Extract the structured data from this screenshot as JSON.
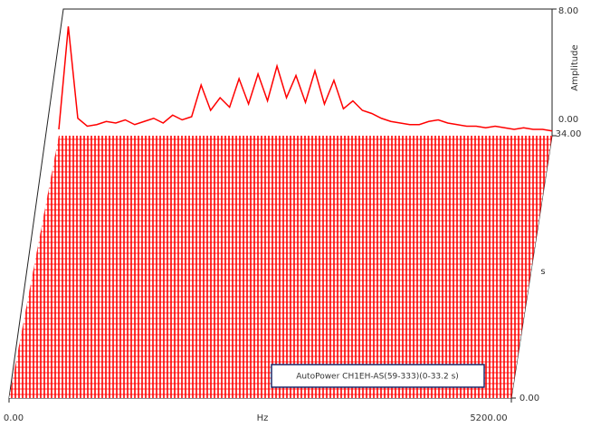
{
  "chart_data": {
    "type": "waterfall",
    "x_label": "Hz",
    "y_label": "Amplitude",
    "z_label": "s",
    "xlim": [
      0,
      5200
    ],
    "xticks": [
      {
        "value": 0,
        "label": "0.00"
      },
      {
        "value": 5200,
        "label": "5200.00"
      }
    ],
    "ylim": [
      0,
      8
    ],
    "yticks": [
      {
        "value": 0,
        "label": "0.00"
      },
      {
        "value": 8,
        "label": "8.00"
      }
    ],
    "zlim": [
      0,
      34
    ],
    "zticks": [
      {
        "value": 0,
        "label": "0.00"
      },
      {
        "value": 34,
        "label": "34.00"
      }
    ],
    "series": [
      {
        "name": "AutoPower CH1EH-AS(59-333)(0-33.2 s)",
        "color": "#ff0000",
        "x": [
          0,
          100,
          200,
          300,
          400,
          500,
          600,
          700,
          800,
          900,
          1000,
          1100,
          1200,
          1300,
          1400,
          1500,
          1600,
          1700,
          1800,
          1900,
          2000,
          2100,
          2200,
          2300,
          2400,
          2500,
          2600,
          2700,
          2800,
          2900,
          3000,
          3100,
          3200,
          3300,
          3400,
          3500,
          3600,
          3700,
          3800,
          3900,
          4000,
          4100,
          4200,
          4300,
          4400,
          4500,
          4600,
          4700,
          4800,
          4900,
          5000,
          5100,
          5200
        ],
        "values": [
          0.4,
          6.9,
          1.1,
          0.6,
          0.7,
          0.9,
          0.8,
          1.0,
          0.7,
          0.9,
          1.1,
          0.8,
          1.3,
          1.0,
          1.2,
          3.2,
          1.6,
          2.4,
          1.8,
          3.6,
          2.0,
          3.9,
          2.2,
          4.4,
          2.4,
          3.8,
          2.1,
          4.1,
          2.0,
          3.5,
          1.7,
          2.2,
          1.6,
          1.4,
          1.1,
          0.9,
          0.8,
          0.7,
          0.7,
          0.9,
          1.0,
          0.8,
          0.7,
          0.6,
          0.6,
          0.5,
          0.6,
          0.5,
          0.4,
          0.5,
          0.4,
          0.4,
          0.3
        ]
      }
    ]
  }
}
